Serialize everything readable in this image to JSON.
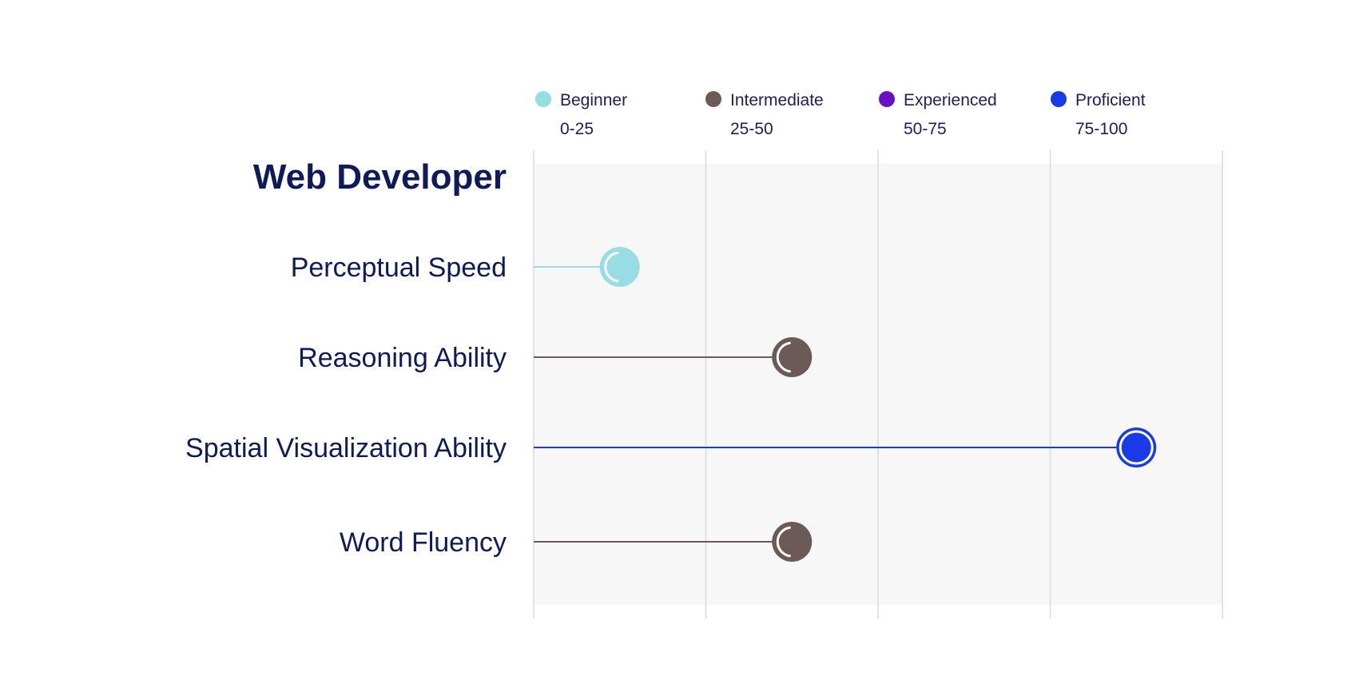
{
  "chart_data": {
    "type": "lollipop",
    "title": "Web Developer",
    "xlim": [
      0,
      100
    ],
    "grid": true,
    "legend_placement": "top",
    "levels": [
      {
        "name": "Beginner",
        "range": "0-25",
        "color": "#97dde3"
      },
      {
        "name": "Intermediate",
        "range": "25-50",
        "color": "#6b5a55"
      },
      {
        "name": "Experienced",
        "range": "50-75",
        "color": "#6a0fc4"
      },
      {
        "name": "Proficient",
        "range": "75-100",
        "color": "#1a3ae8"
      }
    ],
    "rows": [
      {
        "label": "Perceptual Speed",
        "value": 12.5,
        "level": 0
      },
      {
        "label": "Reasoning Ability",
        "value": 37.5,
        "level": 1
      },
      {
        "label": "Spatial Visualization Ability",
        "value": 87.5,
        "level": 3
      },
      {
        "label": "Word Fluency",
        "value": 37.5,
        "level": 1
      }
    ]
  }
}
